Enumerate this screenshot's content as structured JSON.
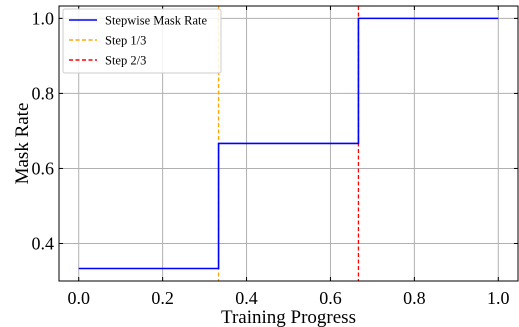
{
  "chart_data": {
    "type": "line",
    "title": "",
    "xlabel": "Training Progress",
    "ylabel": "Mask Rate",
    "xlim": [
      -0.047,
      1.047
    ],
    "ylim": [
      0.3,
      1.033
    ],
    "xticks": [
      0.0,
      0.2,
      0.4,
      0.6,
      0.8,
      1.0
    ],
    "xtick_labels": [
      "0.0",
      "0.2",
      "0.4",
      "0.6",
      "0.8",
      "1.0"
    ],
    "yticks": [
      0.4,
      0.6,
      0.8,
      1.0
    ],
    "ytick_labels": [
      "0.4",
      "0.6",
      "0.8",
      "1.0"
    ],
    "grid": true,
    "legend_position": "top-left",
    "series": [
      {
        "name": "Stepwise Mask Rate",
        "style": "solid",
        "color": "#0000ff",
        "x": [
          0.0,
          0.3333,
          0.3333,
          0.6667,
          0.6667,
          1.0
        ],
        "y": [
          0.3333,
          0.3333,
          0.6667,
          0.6667,
          1.0,
          1.0
        ]
      }
    ],
    "vlines": [
      {
        "name": "Step 1/3",
        "x": 0.3333,
        "style": "dashed",
        "color": "#ffa500"
      },
      {
        "name": "Step 2/3",
        "x": 0.6667,
        "style": "dashed",
        "color": "#ff0000"
      }
    ]
  }
}
